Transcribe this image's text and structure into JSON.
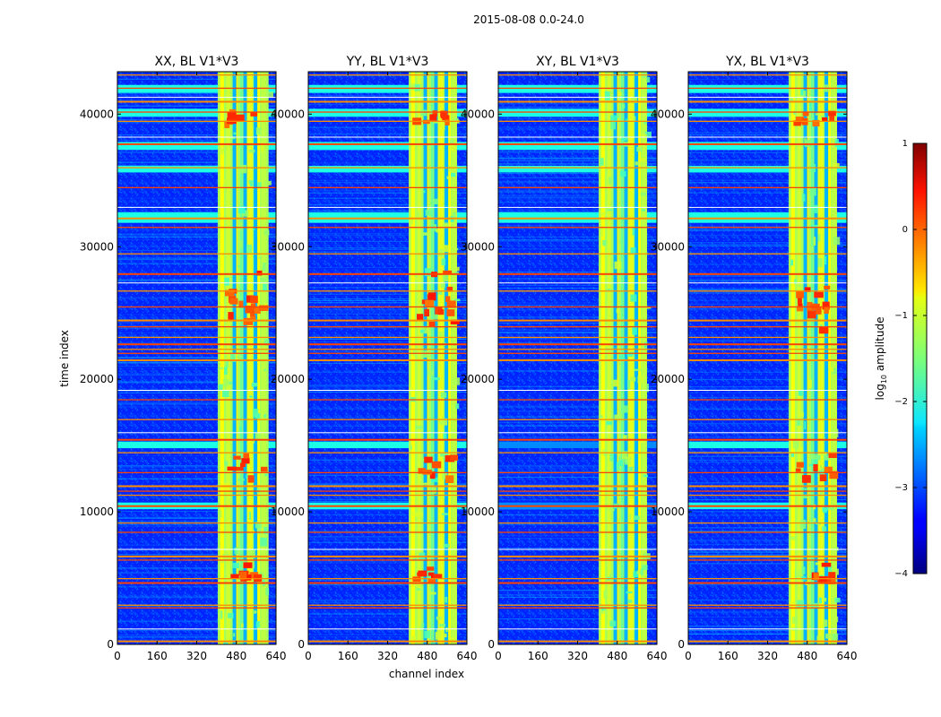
{
  "chart_data": {
    "type": "heatmap",
    "suptitle": "2015-08-08 0.0-24.0",
    "xlabel": "channel index",
    "ylabel": "time index",
    "x_ticks": [
      0,
      160,
      320,
      480,
      640
    ],
    "y_ticks": [
      0,
      10000,
      20000,
      30000,
      40000
    ],
    "x_range": [
      0,
      640
    ],
    "y_range": [
      0,
      43200
    ],
    "colorbar": {
      "label_prefix": "log",
      "label_sub": "10",
      "label_suffix": " amplitude",
      "ticks": [
        1,
        0,
        -1,
        -2,
        -3,
        -4
      ],
      "tick_labels": [
        "1",
        "0",
        "−1",
        "−2",
        "−3",
        "−4"
      ],
      "range": [
        -4,
        1
      ],
      "colormap": "jet"
    },
    "panels": [
      {
        "title": "XX, BL V1*V3",
        "signal_band": [
          405,
          610
        ],
        "hot_patches": true
      },
      {
        "title": "YY, BL V1*V3",
        "signal_band": [
          405,
          600
        ],
        "hot_patches": true
      },
      {
        "title": "XY, BL V1*V3",
        "signal_band": [
          405,
          600
        ],
        "hot_patches": false
      },
      {
        "title": "YX, BL V1*V3",
        "signal_band": [
          405,
          600
        ],
        "hot_patches": true
      }
    ],
    "flagged_time_rows": [
      300,
      2800,
      3000,
      4700,
      5000,
      6400,
      6700,
      8500,
      9200,
      10500,
      11300,
      11600,
      12000,
      13000,
      14500,
      15500,
      17000,
      18500,
      21500,
      22000,
      22300,
      22700,
      23200,
      24000,
      24500,
      25500,
      26700,
      28000,
      29500,
      31500,
      32200,
      34500,
      36000,
      37800,
      39500,
      40200,
      41000,
      42000,
      43000
    ],
    "bright_time_bands": [
      [
        31800,
        32600
      ],
      [
        37300,
        37900
      ],
      [
        35600,
        36100
      ],
      [
        39800,
        40400
      ],
      [
        41600,
        42200
      ],
      [
        14800,
        15300
      ],
      [
        10200,
        10700
      ]
    ]
  }
}
